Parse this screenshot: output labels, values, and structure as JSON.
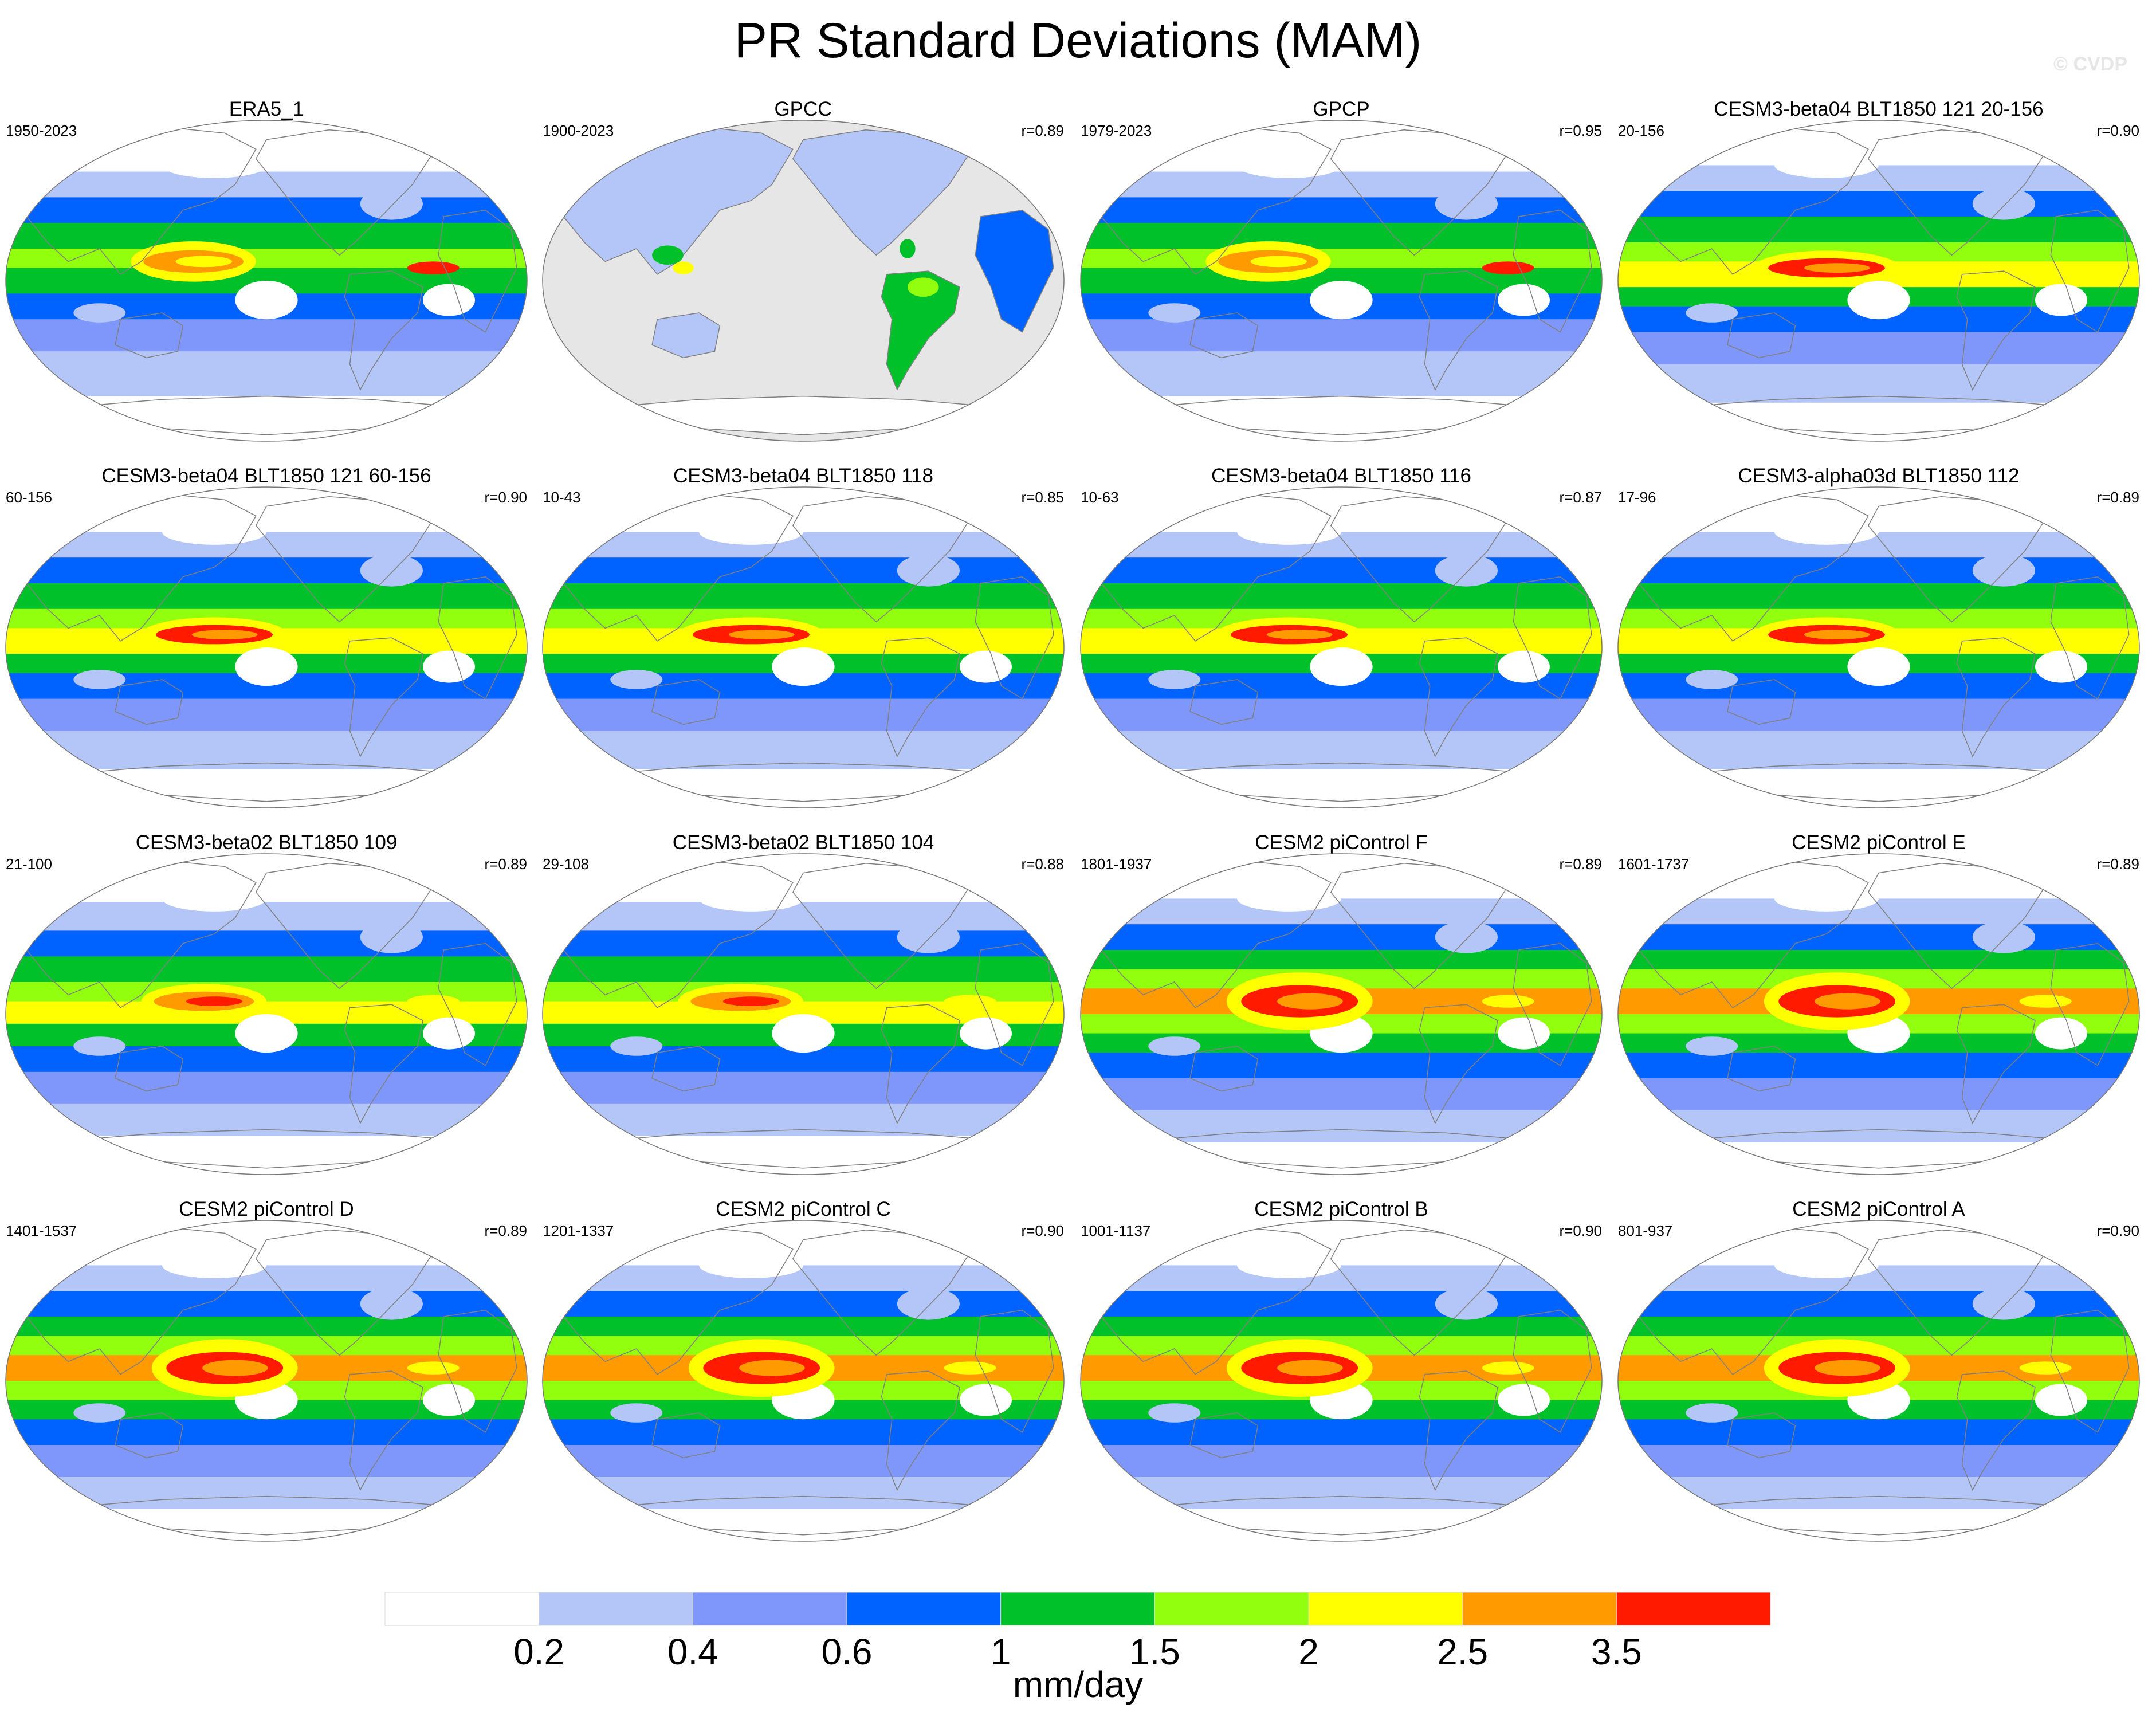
{
  "title": "PR Standard Deviations (MAM)",
  "watermark": "© CVDP",
  "chart_data": {
    "type": "map-panels",
    "variable": "PR",
    "statistic": "Standard Deviations",
    "season": "MAM",
    "projection": "Robinson, centered on the Pacific",
    "panels": [
      {
        "title": "ERA5_1",
        "years": "1950-2023",
        "r": "",
        "fill": "obs"
      },
      {
        "title": "GPCC",
        "years": "1900-2023",
        "r": "r=0.89",
        "fill": "land-only"
      },
      {
        "title": "GPCP",
        "years": "1979-2023",
        "r": "r=0.95",
        "fill": "obs"
      },
      {
        "title": "CESM3-beta04 BLT1850 121 20-156",
        "years": "20-156",
        "r": "r=0.90",
        "fill": "beta"
      },
      {
        "title": "CESM3-beta04 BLT1850 121 60-156",
        "years": "60-156",
        "r": "r=0.90",
        "fill": "beta"
      },
      {
        "title": "CESM3-beta04 BLT1850 118",
        "years": "10-43",
        "r": "r=0.85",
        "fill": "beta"
      },
      {
        "title": "CESM3-beta04 BLT1850 116",
        "years": "10-63",
        "r": "r=0.87",
        "fill": "beta"
      },
      {
        "title": "CESM3-alpha03d BLT1850 112",
        "years": "17-96",
        "r": "r=0.89",
        "fill": "beta"
      },
      {
        "title": "CESM3-beta02 BLT1850 109",
        "years": "21-100",
        "r": "r=0.89",
        "fill": "beta02"
      },
      {
        "title": "CESM3-beta02 BLT1850 104",
        "years": "29-108",
        "r": "r=0.88",
        "fill": "beta02"
      },
      {
        "title": "CESM2 piControl F",
        "years": "1801-1937",
        "r": "r=0.89",
        "fill": "cesm2"
      },
      {
        "title": "CESM2 piControl E",
        "years": "1601-1737",
        "r": "r=0.89",
        "fill": "cesm2"
      },
      {
        "title": "CESM2 piControl D",
        "years": "1401-1537",
        "r": "r=0.89",
        "fill": "cesm2"
      },
      {
        "title": "CESM2 piControl C",
        "years": "1201-1337",
        "r": "r=0.90",
        "fill": "cesm2"
      },
      {
        "title": "CESM2 piControl B",
        "years": "1001-1137",
        "r": "r=0.90",
        "fill": "cesm2"
      },
      {
        "title": "CESM2 piControl A",
        "years": "801-937",
        "r": "r=0.90",
        "fill": "cesm2"
      }
    ],
    "colorbar": {
      "levels": [
        "0.2",
        "0.4",
        "0.6",
        "1",
        "1.5",
        "2",
        "2.5",
        "3.5"
      ],
      "colors": [
        "#ffffff",
        "#b4c6f8",
        "#7f96fb",
        "#0062ff",
        "#00c12a",
        "#92ff0e",
        "#ffff00",
        "#ff9a00",
        "#ff1a00"
      ],
      "unit": "mm/day"
    },
    "colors": {
      "ocean_missing": "#e6e6e6",
      "coastline": "#808080"
    }
  }
}
